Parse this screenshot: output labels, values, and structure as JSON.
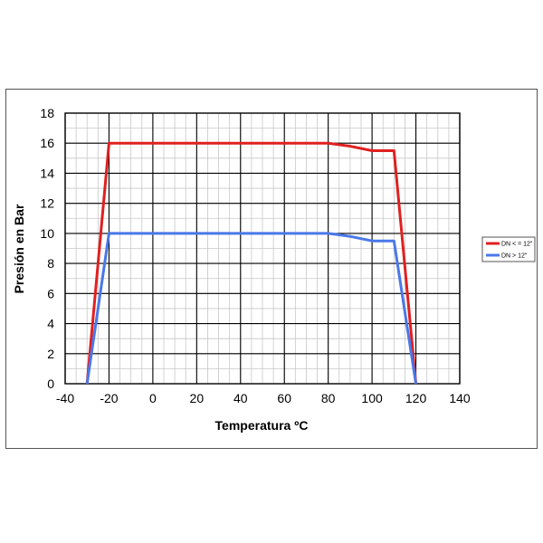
{
  "chart_data": {
    "type": "line",
    "title": "",
    "xlabel": "Temperatura ºC",
    "ylabel": "Presión en Bar",
    "xlim": [
      -40,
      140
    ],
    "ylim": [
      0,
      18
    ],
    "x_major_ticks": [
      -40,
      -20,
      0,
      20,
      40,
      60,
      80,
      100,
      120,
      140
    ],
    "y_major_ticks": [
      0,
      2,
      4,
      6,
      8,
      10,
      12,
      14,
      16,
      18
    ],
    "x_minor_step": 5,
    "y_minor_step": 1,
    "grid": true,
    "legend_position": "right",
    "series": [
      {
        "name": "DN < = 12\"",
        "color": "#e02020",
        "points": [
          [
            -30,
            0
          ],
          [
            -20,
            16
          ],
          [
            80,
            16
          ],
          [
            90,
            15.8
          ],
          [
            100,
            15.5
          ],
          [
            110,
            15.5
          ],
          [
            120,
            0
          ]
        ]
      },
      {
        "name": "DN > 12\"",
        "color": "#4a78e8",
        "points": [
          [
            -30,
            0
          ],
          [
            -20,
            10
          ],
          [
            80,
            10
          ],
          [
            90,
            9.8
          ],
          [
            100,
            9.5
          ],
          [
            110,
            9.5
          ],
          [
            120,
            0
          ]
        ]
      }
    ]
  }
}
